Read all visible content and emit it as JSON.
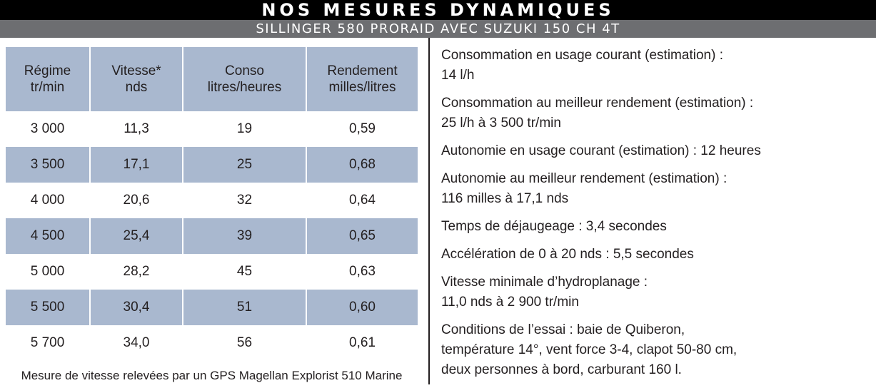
{
  "header": {
    "title": "NOS MESURES DYNAMIQUES",
    "subtitle": "SILLINGER 580 PRORAID AVEC SUZUKI 150 CH 4T"
  },
  "table": {
    "columns": [
      {
        "line1": "Régime",
        "line2": "tr/min"
      },
      {
        "line1": "Vitesse*",
        "line2": "nds"
      },
      {
        "line1": "Conso",
        "line2": "litres/heures"
      },
      {
        "line1": "Rendement",
        "line2": "milles/litres"
      }
    ],
    "rows": [
      [
        "3 000",
        "11,3",
        "19",
        "0,59"
      ],
      [
        "3 500",
        "17,1",
        "25",
        "0,68"
      ],
      [
        "4 000",
        "20,6",
        "32",
        "0,64"
      ],
      [
        "4 500",
        "25,4",
        "39",
        "0,65"
      ],
      [
        "5 000",
        "28,2",
        "45",
        "0,63"
      ],
      [
        "5 500",
        "30,4",
        "51",
        "0,60"
      ],
      [
        "5 700",
        "34,0",
        "56",
        "0,61"
      ]
    ],
    "footnote": "Mesure de vitesse relevées par un GPS Magellan Explorist 510 Marine"
  },
  "stats": [
    {
      "lines": [
        "Consommation en usage courant (estimation) :",
        "14 l/h"
      ]
    },
    {
      "lines": [
        "Consommation au meilleur rendement (estimation) :",
        "25 l/h à 3 500 tr/min"
      ]
    },
    {
      "lines": [
        "Autonomie en usage courant (estimation) : 12 heures"
      ]
    },
    {
      "lines": [
        "Autonomie au meilleur rendement (estimation) :",
        "116 milles à 17,1 nds"
      ]
    },
    {
      "lines": [
        "Temps de déjaugeage : 3,4 secondes"
      ]
    },
    {
      "lines": [
        "Accélération de 0 à 20 nds : 5,5 secondes"
      ]
    },
    {
      "lines": [
        "Vitesse minimale d’hydroplanage :",
        "11,0 nds à 2 900 tr/min"
      ]
    },
    {
      "lines": [
        "Conditions de l’essai : baie de Quiberon,",
        "température 14°, vent force 3-4, clapot 50-80 cm,",
        "deux personnes à bord, carburant 160 l."
      ]
    }
  ],
  "colors": {
    "title_bg": "#000000",
    "subtitle_bg": "#6d6e71",
    "table_shade": "#a9b8cf",
    "text": "#231f20"
  }
}
